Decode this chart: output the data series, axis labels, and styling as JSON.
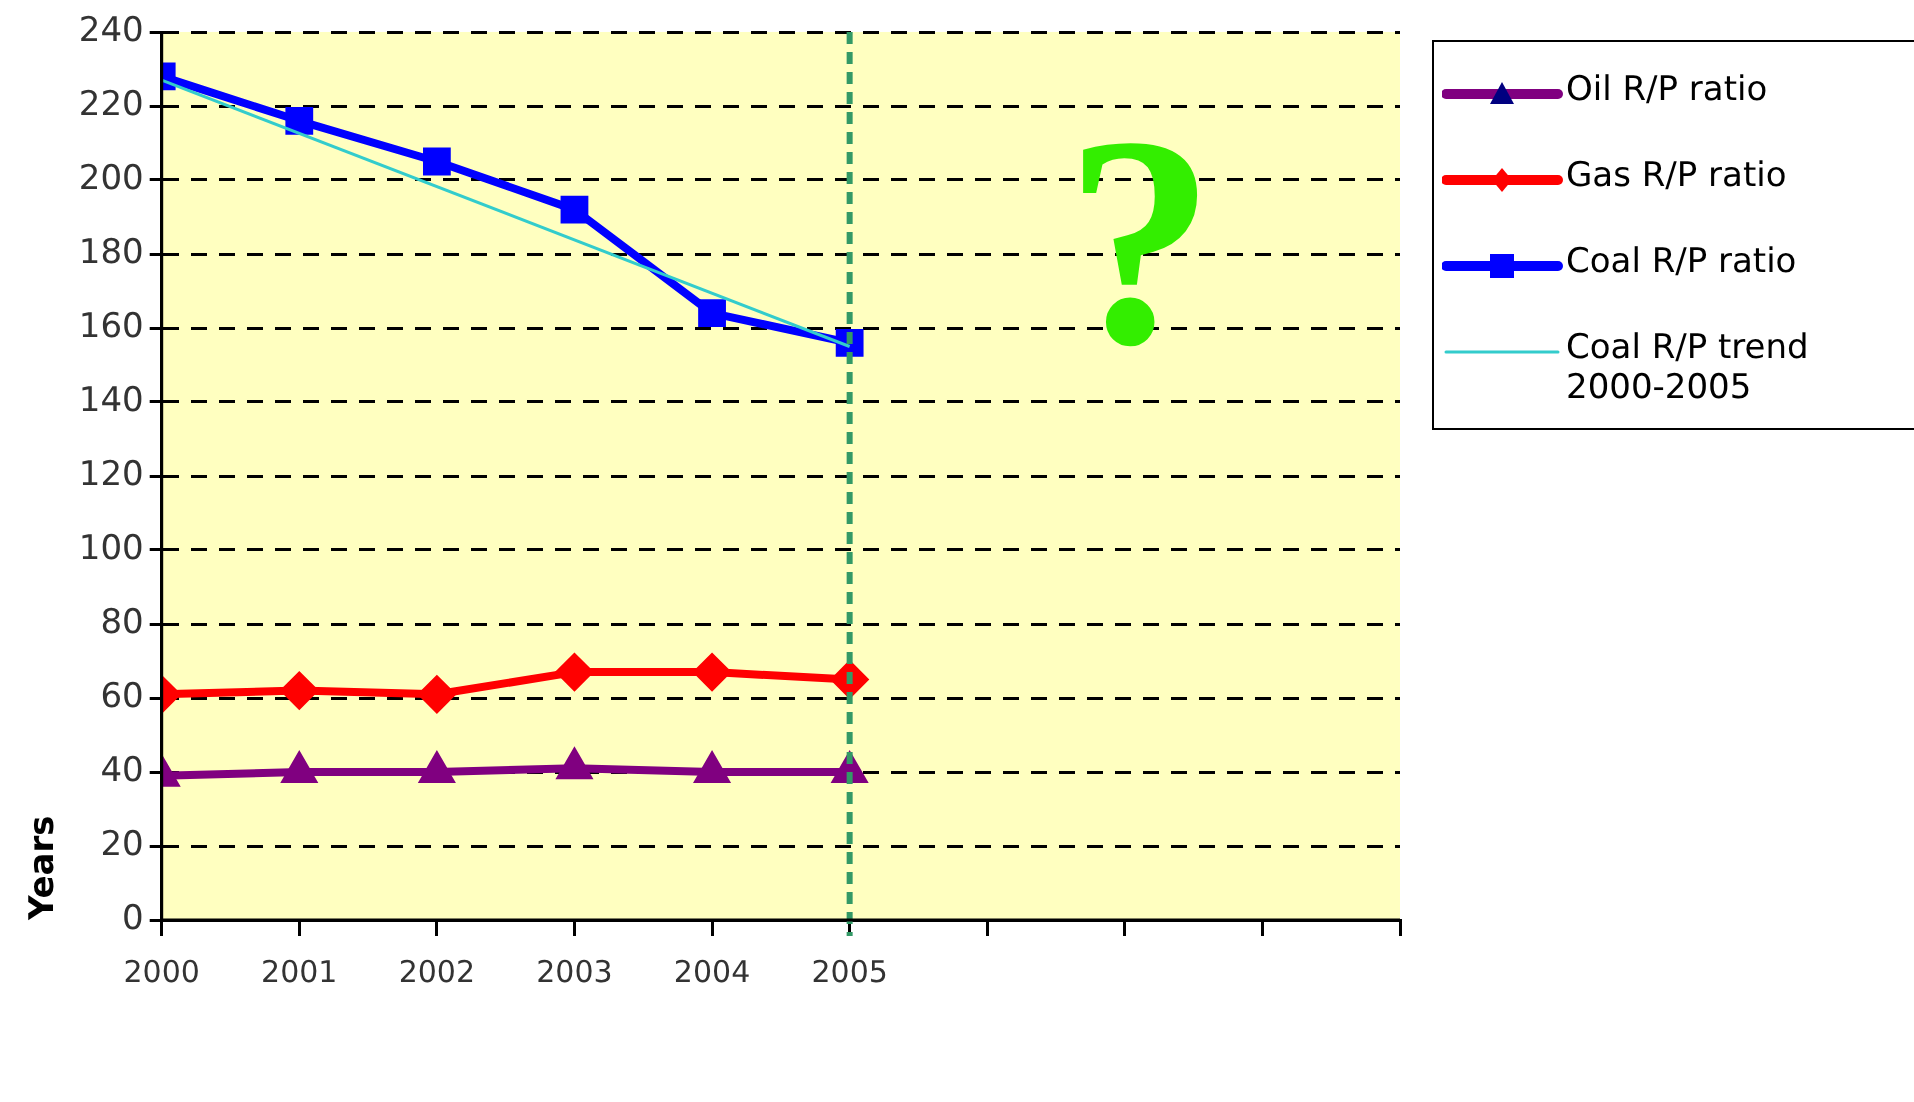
{
  "chart_data": {
    "type": "line",
    "ylabel": "Years",
    "xlim": [
      2000,
      2009
    ],
    "xticks": [
      2000,
      2001,
      2002,
      2003,
      2004,
      2005,
      {
        "value": 2006,
        "label": null
      },
      {
        "value": 2007,
        "label": null
      },
      {
        "value": 2008,
        "label": null
      },
      {
        "value": 2009,
        "label": null
      }
    ],
    "ylim": [
      0,
      240
    ],
    "yticks": [
      0,
      20,
      40,
      60,
      80,
      100,
      120,
      140,
      160,
      180,
      200,
      220,
      240
    ],
    "grid": "y",
    "legend": "right",
    "line_style": "solid",
    "x": [
      2000,
      2001,
      2002,
      2003,
      2004,
      2005
    ],
    "series": [
      {
        "name": "Oil R/P ratio",
        "color": "#800080",
        "marker": "triangle",
        "values": [
          39,
          40,
          40,
          41,
          40,
          40
        ]
      },
      {
        "name": "Gas R/P ratio",
        "color": "#ff0000",
        "marker": "diamond",
        "values": [
          61,
          62,
          61,
          67,
          67,
          65
        ]
      },
      {
        "name": "Coal R/P ratio",
        "color": "#0000ff",
        "marker": "square",
        "values": [
          228,
          216,
          205,
          192,
          164,
          156
        ]
      },
      {
        "name": "Coal R/P trend 2000-2005",
        "color": "#33cccc",
        "marker": "none",
        "x": [
          2000,
          2005
        ],
        "values": [
          227,
          155
        ]
      }
    ],
    "ref_lines": [
      {
        "axis": "x",
        "value": 2005,
        "color": "#339966",
        "line_style": "dashed"
      }
    ],
    "annotations": [
      "?"
    ]
  }
}
